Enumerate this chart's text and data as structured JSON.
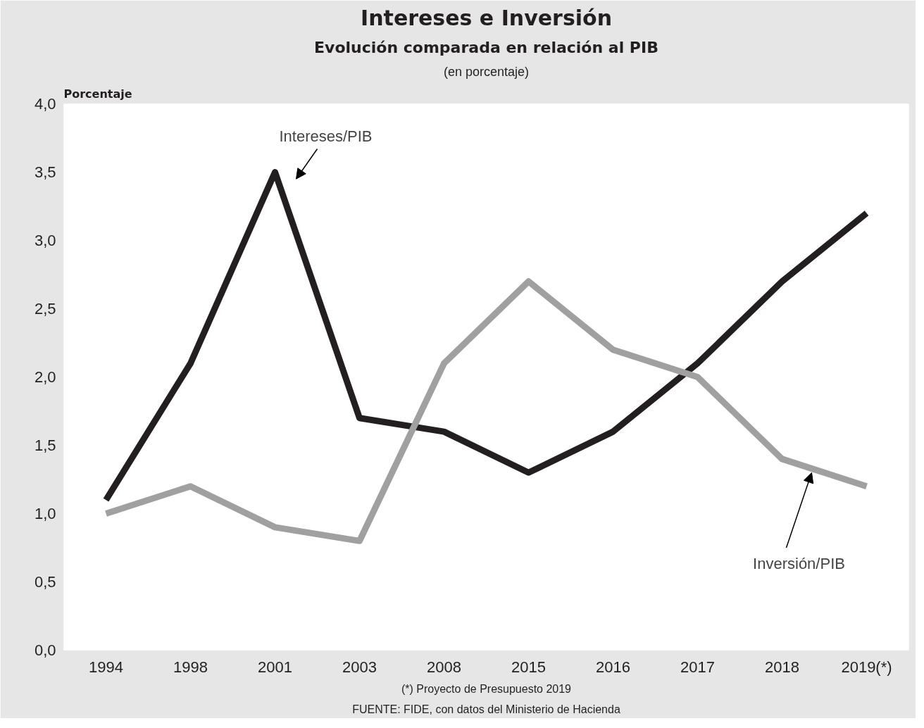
{
  "chart_data": {
    "type": "line",
    "title": "Intereses e Inversión",
    "subtitle": "Evolución comparada en relación al PIB",
    "ylabel": "Porcentaje",
    "annotations": [
      "(en porcentaje)",
      "(*) Proyecto de Presupuesto 2019",
      "FUENTE: FIDE, con datos del Ministerio de Hacienda"
    ],
    "categories": [
      "1994",
      "1998",
      "2001",
      "2003",
      "2008",
      "2015",
      "2016",
      "2017",
      "2018",
      "2019(*)"
    ],
    "series": [
      {
        "name": "Intereses/PIB",
        "color": "#231f20",
        "values": [
          1.1,
          2.1,
          3.5,
          1.7,
          1.6,
          1.3,
          1.6,
          2.1,
          2.7,
          3.2
        ]
      },
      {
        "name": "Inversión/PIB",
        "color": "#a0a0a0",
        "values": [
          1.0,
          1.2,
          0.9,
          0.8,
          2.1,
          2.7,
          2.2,
          2.0,
          1.4,
          1.2
        ]
      }
    ],
    "ylim": [
      0,
      4
    ],
    "yticks": [
      {
        "value": 0,
        "label": "0,0"
      },
      {
        "value": 0.5,
        "label": "0,5"
      },
      {
        "value": 1,
        "label": "1,0"
      },
      {
        "value": 1.5,
        "label": "1,5"
      },
      {
        "value": 2,
        "label": "2,0"
      },
      {
        "value": 2.5,
        "label": "2,5"
      },
      {
        "value": 3,
        "label": "3,0"
      },
      {
        "value": 3.5,
        "label": "3,5"
      },
      {
        "value": 4,
        "label": "4,0"
      }
    ],
    "grid": false,
    "legend": false,
    "marker": "none",
    "line_style": "solid"
  }
}
